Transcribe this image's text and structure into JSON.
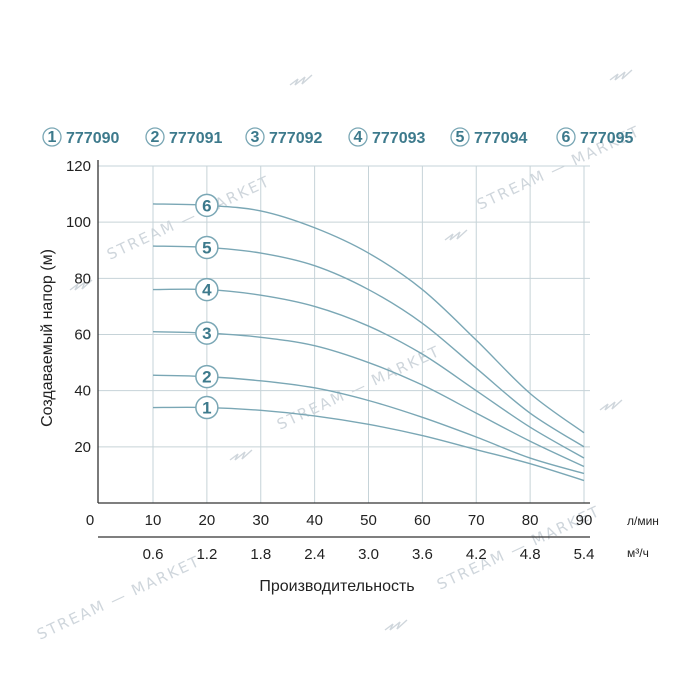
{
  "colors": {
    "accent": "#3d7a8c",
    "curve": "#7aa7b5",
    "grid": "#c6d3d8",
    "axis": "#333333",
    "text": "#222222"
  },
  "chart_data": {
    "type": "line",
    "ylabel": "Создаваемый напор (м)",
    "xlabel": "Производительность",
    "x_unit": "л/мин",
    "x2_unit": "м³/ч",
    "origin_label": "0",
    "ylim": [
      0,
      120
    ],
    "y_ticks": [
      "20",
      "40",
      "60",
      "80",
      "100",
      "120"
    ],
    "x_ticks": [
      "10",
      "20",
      "30",
      "40",
      "50",
      "60",
      "70",
      "80",
      "90"
    ],
    "x2_ticks": [
      "0.6",
      "1.2",
      "1.8",
      "2.4",
      "3.0",
      "3.6",
      "4.2",
      "4.8",
      "5.4"
    ],
    "grid": true,
    "legend_position": "top",
    "watermark": "STREAM — MARKET",
    "series": [
      {
        "marker": "1",
        "name": "777090",
        "x": [
          10,
          20,
          30,
          40,
          50,
          60,
          70,
          80,
          90
        ],
        "y": [
          34,
          34,
          33,
          31,
          28,
          24,
          19,
          14,
          8
        ]
      },
      {
        "marker": "2",
        "name": "777091",
        "x": [
          10,
          20,
          30,
          40,
          50,
          60,
          70,
          80,
          90
        ],
        "y": [
          45.5,
          45,
          43.5,
          41,
          36.5,
          30.5,
          23.5,
          16,
          10.5
        ]
      },
      {
        "marker": "3",
        "name": "777092",
        "x": [
          10,
          20,
          30,
          40,
          50,
          60,
          70,
          80,
          90
        ],
        "y": [
          61,
          60.5,
          59,
          56,
          50,
          42,
          32,
          22,
          13
        ]
      },
      {
        "marker": "4",
        "name": "777093",
        "x": [
          10,
          20,
          30,
          40,
          50,
          60,
          70,
          80,
          90
        ],
        "y": [
          76,
          76,
          74,
          70,
          63,
          53,
          40,
          27,
          16
        ]
      },
      {
        "marker": "5",
        "name": "777094",
        "x": [
          10,
          20,
          30,
          40,
          50,
          60,
          70,
          80,
          90
        ],
        "y": [
          91.5,
          91,
          89,
          84.5,
          76,
          64,
          48,
          32,
          20
        ]
      },
      {
        "marker": "6",
        "name": "777095",
        "x": [
          10,
          20,
          30,
          40,
          50,
          60,
          70,
          80,
          90
        ],
        "y": [
          106.5,
          106,
          104,
          98,
          89,
          76,
          58,
          39,
          25
        ]
      }
    ]
  }
}
